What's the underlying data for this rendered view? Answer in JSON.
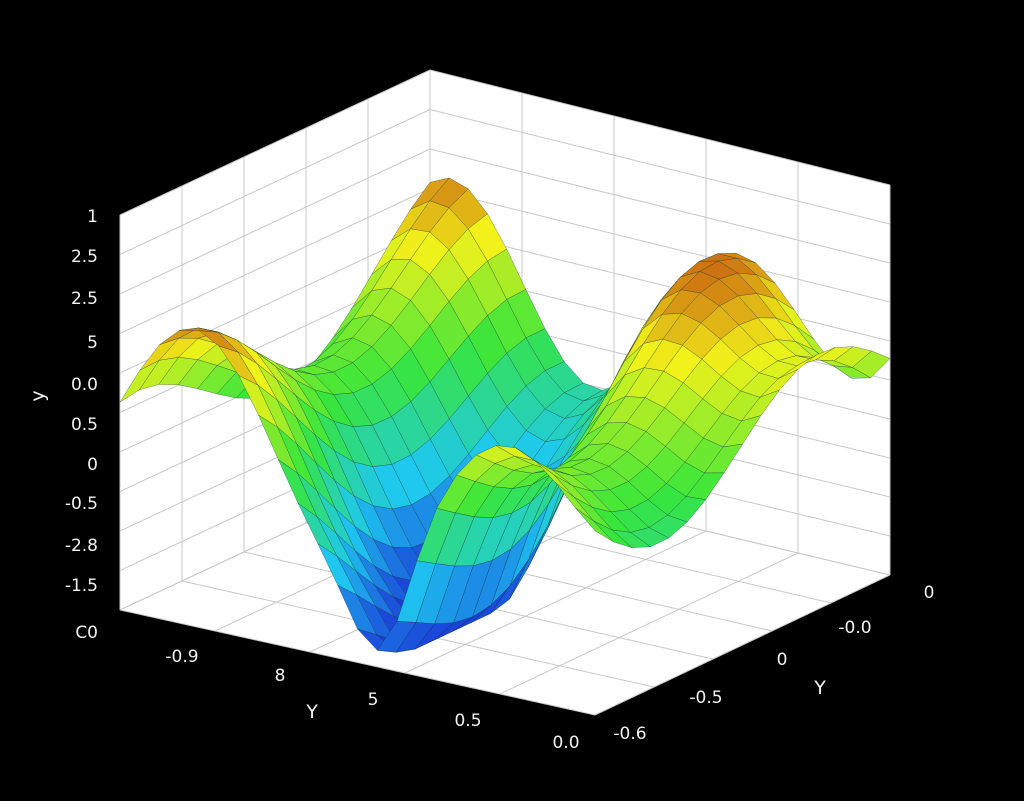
{
  "chart_data": {
    "type": "surface",
    "title": "",
    "grid": true,
    "colormap": [
      "#1a2fd6",
      "#1ec8f0",
      "#38e63a",
      "#f2f21a",
      "#b31a0a"
    ],
    "z_axis": {
      "label": "y",
      "tick_labels": [
        "1",
        "2.5",
        "2.5",
        "5",
        "0.0",
        "0.5",
        "0",
        "-0.5",
        "-2.8",
        "-1.5",
        "C0"
      ]
    },
    "x_axis": {
      "label": "Y",
      "tick_labels": [
        "-0.9",
        "8",
        "5",
        "0.5",
        "0.0"
      ]
    },
    "y_axis": {
      "label": "Y",
      "tick_labels": [
        "0",
        "-0.0",
        "0",
        "-0.5",
        "-0.6"
      ]
    },
    "surface": {
      "rows": 17,
      "cols": 25,
      "note_values": "z heights of the depicted surface (normalized)"
    }
  }
}
